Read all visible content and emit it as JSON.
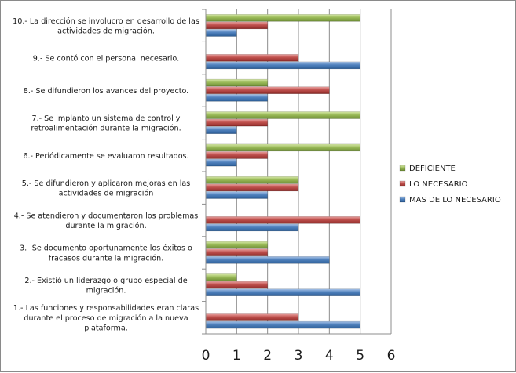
{
  "chart_data": {
    "type": "bar",
    "orientation": "horizontal",
    "title": "",
    "xlabel": "",
    "ylabel": "",
    "xlim": [
      0,
      6
    ],
    "xticks": [
      0,
      1,
      2,
      3,
      4,
      5,
      6
    ],
    "grid": true,
    "legend_position": "right",
    "categories": [
      "1.- Las funciones y responsabilidades eran claras durante el proceso de migración a la nueva plataforma.",
      "2.- Existió un liderazgo o grupo especial de migración.",
      "3.- Se documento oportunamente los éxitos o fracasos durante la migración.",
      "4.- Se atendieron y documentaron los problemas durante la migración.",
      "5.- Se difundieron y aplicaron mejoras en las actividades de migración",
      "6.- Periódicamente se evaluaron resultados.",
      "7.- Se implanto un sistema de control y retroalimentación durante la migración.",
      "8.- Se difundieron los avances del proyecto.",
      "9.- Se contó con el personal necesario.",
      "10.- La dirección se involucro en desarrollo de las actividades de migración."
    ],
    "category_lines": [
      [
        "1.- Las funciones y responsabilidades eran claras",
        "durante el proceso de migración a la nueva",
        "plataforma."
      ],
      [
        "2.- Existió un liderazgo o grupo especial de",
        "migración."
      ],
      [
        "3.- Se documento oportunamente los éxitos o",
        "fracasos durante la migración."
      ],
      [
        "4.- Se atendieron y documentaron los problemas",
        "durante la migración."
      ],
      [
        "5.- Se difundieron y aplicaron mejoras en las",
        "actividades de migración"
      ],
      [
        "6.- Periódicamente se evaluaron resultados."
      ],
      [
        "7.- Se implanto un sistema de control y",
        "retroalimentación durante la migración."
      ],
      [
        "8.- Se difundieron los avances del proyecto."
      ],
      [
        "9.- Se contó con el personal necesario."
      ],
      [
        "10.- La dirección se involucro en desarrollo de las",
        "actividades de migración."
      ]
    ],
    "series": [
      {
        "name": "MAS DE LO NECESARIO",
        "color": "#4f81bd",
        "values": [
          5,
          5,
          4,
          3,
          2,
          1,
          1,
          2,
          5,
          1
        ]
      },
      {
        "name": "LO NECESARIO",
        "color": "#c0504d",
        "values": [
          3,
          2,
          2,
          5,
          3,
          2,
          2,
          4,
          3,
          2
        ]
      },
      {
        "name": "DEFICIENTE",
        "color": "#9bbb59",
        "values": [
          0,
          1,
          2,
          0,
          3,
          5,
          5,
          2,
          0,
          5
        ]
      }
    ],
    "legend_order": [
      "DEFICIENTE",
      "LO NECESARIO",
      "MAS DE LO NECESARIO"
    ]
  }
}
